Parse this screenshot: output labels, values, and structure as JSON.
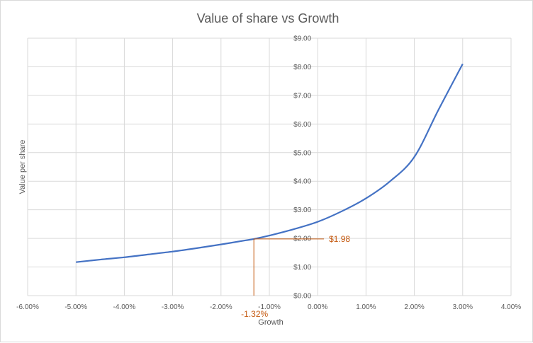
{
  "chart_data": {
    "type": "line",
    "title": "Value of share vs Growth",
    "xlabel": "Growth",
    "ylabel": "Value per share",
    "xlim": [
      -0.06,
      0.04
    ],
    "ylim": [
      0,
      9
    ],
    "x_tick_labels": [
      "-6.00%",
      "-5.00%",
      "-4.00%",
      "-3.00%",
      "-2.00%",
      "-1.00%",
      "0.00%",
      "1.00%",
      "2.00%",
      "3.00%",
      "4.00%"
    ],
    "x_ticks": [
      -0.06,
      -0.05,
      -0.04,
      -0.03,
      -0.02,
      -0.01,
      0.0,
      0.01,
      0.02,
      0.03,
      0.04
    ],
    "y_tick_labels": [
      "$0.00",
      "$1.00",
      "$2.00",
      "$3.00",
      "$4.00",
      "$5.00",
      "$6.00",
      "$7.00",
      "$8.00",
      "$9.00"
    ],
    "y_ticks": [
      0,
      1,
      2,
      3,
      4,
      5,
      6,
      7,
      8,
      9
    ],
    "grid": true,
    "series": [
      {
        "color": "#4472c4",
        "x": [
          -0.05,
          -0.045,
          -0.04,
          -0.035,
          -0.03,
          -0.025,
          -0.02,
          -0.015,
          -0.0132,
          -0.01,
          -0.005,
          0.0,
          0.005,
          0.01,
          0.015,
          0.02,
          0.025,
          0.03
        ],
        "y": [
          1.17,
          1.26,
          1.34,
          1.44,
          1.54,
          1.66,
          1.79,
          1.93,
          1.98,
          2.1,
          2.32,
          2.58,
          2.95,
          3.4,
          4.0,
          4.85,
          6.5,
          8.1
        ]
      }
    ],
    "annotation": {
      "x": -0.0132,
      "y": 1.98,
      "x_label": "-1.32%",
      "y_label": "$1.98",
      "color": "#c55a11"
    }
  }
}
